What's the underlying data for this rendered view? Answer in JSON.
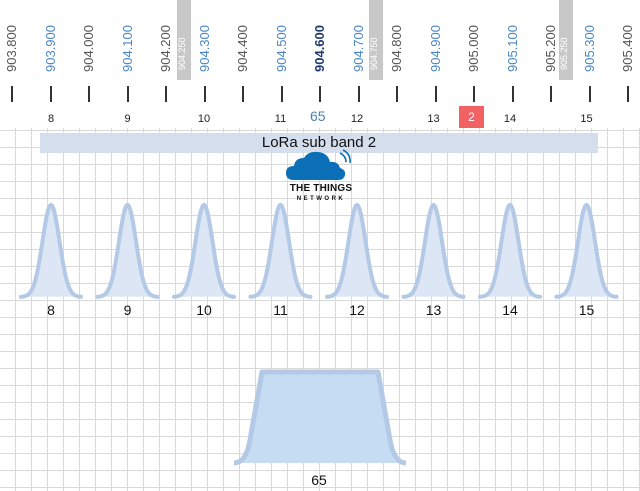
{
  "frequencies": [
    {
      "label": "903.800",
      "color": "#555555"
    },
    {
      "label": "903.900",
      "color": "#4a86c5"
    },
    {
      "label": "904.000",
      "color": "#555555"
    },
    {
      "label": "904.100",
      "color": "#4a86c5"
    },
    {
      "label": "904.200",
      "color": "#555555"
    },
    {
      "label": "904.300",
      "color": "#4a86c5"
    },
    {
      "label": "904.400",
      "color": "#555555"
    },
    {
      "label": "904.500",
      "color": "#4a86c5"
    },
    {
      "label": "904.600",
      "color": "#1f3a6e",
      "bold": true
    },
    {
      "label": "904.700",
      "color": "#4a86c5"
    },
    {
      "label": "904.800",
      "color": "#555555"
    },
    {
      "label": "904.900",
      "color": "#4a86c5"
    },
    {
      "label": "905.000",
      "color": "#555555"
    },
    {
      "label": "905.100",
      "color": "#4a86c5"
    },
    {
      "label": "905.200",
      "color": "#555555"
    },
    {
      "label": "905.300",
      "color": "#4a86c5"
    },
    {
      "label": "905.400",
      "color": "#555555"
    }
  ],
  "grey_markers": [
    "904.250",
    "904.750",
    "905.250"
  ],
  "top_channels": [
    "8",
    "9",
    "10",
    "11",
    "12",
    "13",
    "14",
    "15"
  ],
  "ch65_top_label": "65",
  "ch2_badge": "2",
  "subband_label": "LoRa sub band 2",
  "logo": {
    "line1": "THE THINGS",
    "line2": "NETWORK",
    "cloud_color": "#0b6fb8"
  },
  "channels_125": [
    "8",
    "9",
    "10",
    "11",
    "12",
    "13",
    "14",
    "15"
  ],
  "channel_500": "65",
  "curve_fill": "#dce6f4",
  "curve_stroke": "#b3c9e6",
  "wide_fill": "#c6dcf3"
}
